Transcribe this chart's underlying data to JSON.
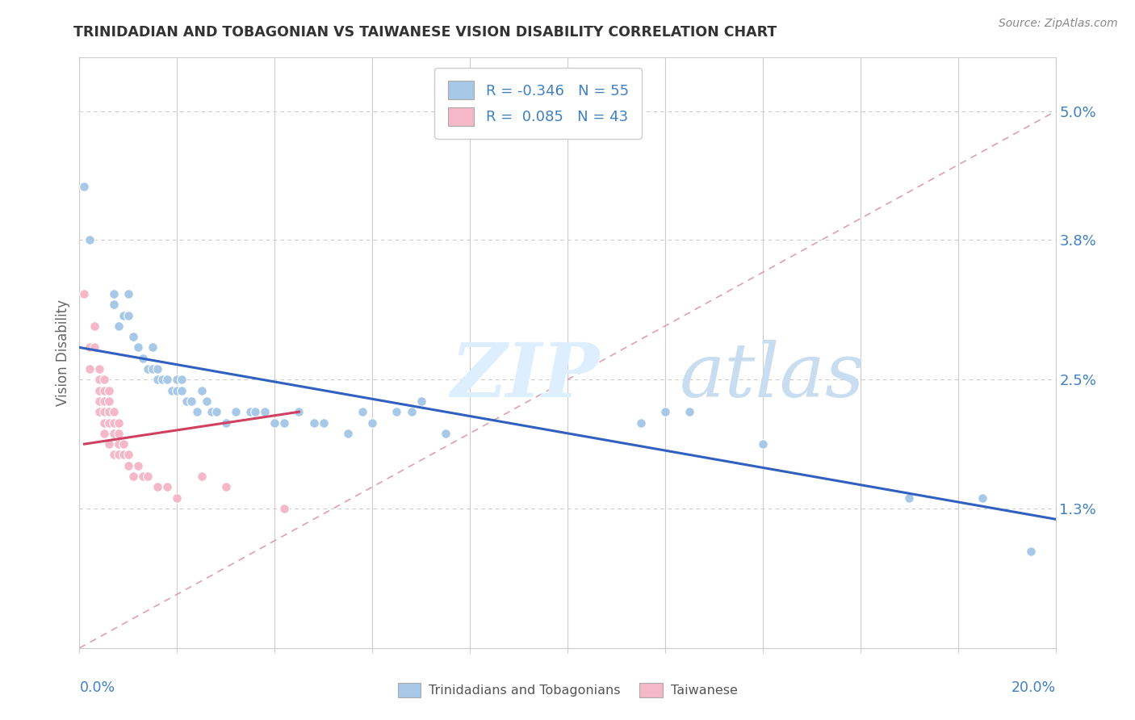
{
  "title": "TRINIDADIAN AND TOBAGONIAN VS TAIWANESE VISION DISABILITY CORRELATION CHART",
  "source": "Source: ZipAtlas.com",
  "ylabel": "Vision Disability",
  "xlim": [
    0.0,
    0.2
  ],
  "ylim": [
    0.0,
    0.055
  ],
  "blue_R": "-0.346",
  "blue_N": "55",
  "pink_R": "0.085",
  "pink_N": "43",
  "blue_color": "#a8c8e8",
  "pink_color": "#f4b8c8",
  "blue_line_color": "#3060c0",
  "pink_line_color": "#d04060",
  "ref_line_color": "#e0a0b0",
  "grid_color": "#cccccc",
  "ytick_color": "#4080c0",
  "yticks": [
    0.0,
    0.013,
    0.025,
    0.038,
    0.05
  ],
  "ytick_labels": [
    "",
    "1.3%",
    "2.5%",
    "3.8%",
    "5.0%"
  ],
  "blue_dots": [
    [
      0.001,
      0.043
    ],
    [
      0.002,
      0.038
    ],
    [
      0.007,
      0.033
    ],
    [
      0.007,
      0.032
    ],
    [
      0.008,
      0.03
    ],
    [
      0.009,
      0.031
    ],
    [
      0.01,
      0.033
    ],
    [
      0.01,
      0.031
    ],
    [
      0.011,
      0.029
    ],
    [
      0.012,
      0.028
    ],
    [
      0.013,
      0.027
    ],
    [
      0.014,
      0.026
    ],
    [
      0.015,
      0.028
    ],
    [
      0.015,
      0.026
    ],
    [
      0.016,
      0.026
    ],
    [
      0.016,
      0.025
    ],
    [
      0.017,
      0.025
    ],
    [
      0.018,
      0.025
    ],
    [
      0.019,
      0.024
    ],
    [
      0.019,
      0.024
    ],
    [
      0.02,
      0.025
    ],
    [
      0.02,
      0.024
    ],
    [
      0.021,
      0.025
    ],
    [
      0.021,
      0.024
    ],
    [
      0.022,
      0.023
    ],
    [
      0.023,
      0.023
    ],
    [
      0.024,
      0.022
    ],
    [
      0.025,
      0.024
    ],
    [
      0.026,
      0.023
    ],
    [
      0.027,
      0.022
    ],
    [
      0.028,
      0.022
    ],
    [
      0.03,
      0.021
    ],
    [
      0.032,
      0.022
    ],
    [
      0.035,
      0.022
    ],
    [
      0.036,
      0.022
    ],
    [
      0.038,
      0.022
    ],
    [
      0.04,
      0.021
    ],
    [
      0.042,
      0.021
    ],
    [
      0.045,
      0.022
    ],
    [
      0.048,
      0.021
    ],
    [
      0.05,
      0.021
    ],
    [
      0.055,
      0.02
    ],
    [
      0.058,
      0.022
    ],
    [
      0.06,
      0.021
    ],
    [
      0.065,
      0.022
    ],
    [
      0.068,
      0.022
    ],
    [
      0.07,
      0.023
    ],
    [
      0.075,
      0.02
    ],
    [
      0.115,
      0.021
    ],
    [
      0.12,
      0.022
    ],
    [
      0.125,
      0.022
    ],
    [
      0.14,
      0.019
    ],
    [
      0.17,
      0.014
    ],
    [
      0.185,
      0.014
    ],
    [
      0.195,
      0.009
    ]
  ],
  "pink_dots": [
    [
      0.001,
      0.033
    ],
    [
      0.002,
      0.028
    ],
    [
      0.002,
      0.026
    ],
    [
      0.003,
      0.03
    ],
    [
      0.003,
      0.028
    ],
    [
      0.004,
      0.026
    ],
    [
      0.004,
      0.025
    ],
    [
      0.004,
      0.024
    ],
    [
      0.004,
      0.023
    ],
    [
      0.004,
      0.022
    ],
    [
      0.005,
      0.025
    ],
    [
      0.005,
      0.024
    ],
    [
      0.005,
      0.023
    ],
    [
      0.005,
      0.022
    ],
    [
      0.005,
      0.021
    ],
    [
      0.005,
      0.02
    ],
    [
      0.006,
      0.024
    ],
    [
      0.006,
      0.023
    ],
    [
      0.006,
      0.022
    ],
    [
      0.006,
      0.021
    ],
    [
      0.006,
      0.019
    ],
    [
      0.007,
      0.022
    ],
    [
      0.007,
      0.021
    ],
    [
      0.007,
      0.02
    ],
    [
      0.007,
      0.018
    ],
    [
      0.008,
      0.021
    ],
    [
      0.008,
      0.02
    ],
    [
      0.008,
      0.019
    ],
    [
      0.008,
      0.018
    ],
    [
      0.009,
      0.019
    ],
    [
      0.009,
      0.018
    ],
    [
      0.01,
      0.018
    ],
    [
      0.01,
      0.017
    ],
    [
      0.011,
      0.016
    ],
    [
      0.012,
      0.017
    ],
    [
      0.013,
      0.016
    ],
    [
      0.014,
      0.016
    ],
    [
      0.016,
      0.015
    ],
    [
      0.018,
      0.015
    ],
    [
      0.02,
      0.014
    ],
    [
      0.025,
      0.016
    ],
    [
      0.03,
      0.015
    ],
    [
      0.042,
      0.013
    ]
  ],
  "blue_line": [
    [
      0.0,
      0.028
    ],
    [
      0.2,
      0.012
    ]
  ],
  "pink_line": [
    [
      0.001,
      0.019
    ],
    [
      0.045,
      0.022
    ]
  ],
  "ref_line": [
    [
      0.0,
      0.0
    ],
    [
      0.2,
      0.05
    ]
  ],
  "watermark_zip": "ZIP",
  "watermark_atlas": "atlas",
  "background_color": "#ffffff"
}
